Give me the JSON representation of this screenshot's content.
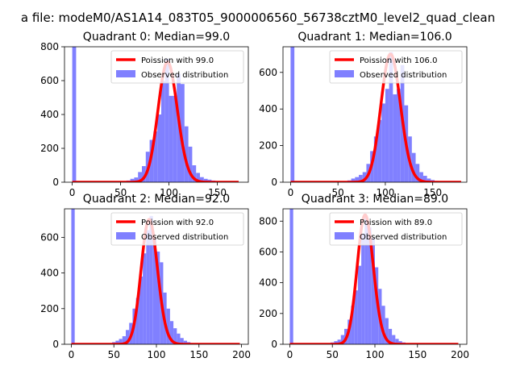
{
  "figure": {
    "suptitle": "a file: modeM0/AS1A14_083T05_9000006560_56738cztM0_level2_quad_clean"
  },
  "colors": {
    "histogram": "#8080ff",
    "poisson": "#ff0000",
    "axis": "#000000",
    "background": "#ffffff"
  },
  "chart_data": [
    {
      "type": "bar",
      "title": "Quadrant 0: Median=99.0",
      "median": 99.0,
      "xlim": [
        -8,
        182
      ],
      "ylim": [
        0,
        800
      ],
      "xticks": [
        0,
        50,
        100,
        150
      ],
      "yticks": [
        0,
        200,
        400,
        600,
        800
      ],
      "legend": {
        "position": "top-right",
        "entries": [
          "Poission with 99.0",
          "Observed distribution"
        ]
      },
      "bin_width": 4,
      "histogram": {
        "bins": [
          0,
          44,
          48,
          52,
          56,
          60,
          64,
          68,
          72,
          76,
          80,
          84,
          88,
          92,
          96,
          100,
          104,
          108,
          112,
          116,
          120,
          124,
          128,
          132,
          136,
          140,
          144,
          148,
          152,
          156,
          160
        ],
        "counts": [
          800,
          2,
          3,
          6,
          10,
          20,
          28,
          60,
          95,
          180,
          250,
          300,
          400,
          600,
          730,
          510,
          510,
          640,
          580,
          330,
          210,
          100,
          55,
          30,
          20,
          15,
          10,
          7,
          4,
          2,
          1
        ]
      },
      "poisson": {
        "lambda": 99.0,
        "scale": 710,
        "x_range": [
          0,
          172
        ]
      }
    },
    {
      "type": "bar",
      "title": "Quadrant 1: Median=106.0",
      "median": 106.0,
      "xlim": [
        -8,
        186
      ],
      "ylim": [
        0,
        740
      ],
      "xticks": [
        0,
        50,
        100,
        150
      ],
      "yticks": [
        0,
        200,
        400,
        600
      ],
      "legend": {
        "position": "top-right",
        "entries": [
          "Poission with 106.0",
          "Observed distribution"
        ]
      },
      "bin_width": 4,
      "histogram": {
        "bins": [
          0,
          52,
          56,
          60,
          64,
          68,
          72,
          76,
          80,
          84,
          88,
          92,
          96,
          100,
          104,
          108,
          112,
          116,
          120,
          124,
          128,
          132,
          136,
          140,
          144,
          148,
          152,
          156,
          160
        ],
        "counts": [
          740,
          3,
          5,
          10,
          20,
          28,
          40,
          55,
          100,
          170,
          250,
          340,
          430,
          510,
          710,
          480,
          510,
          640,
          420,
          250,
          160,
          100,
          55,
          35,
          20,
          12,
          7,
          4,
          2
        ]
      },
      "poisson": {
        "lambda": 106.0,
        "scale": 700,
        "x_range": [
          0,
          180
        ]
      }
    },
    {
      "type": "bar",
      "title": "Quadrant 2: Median=92.0",
      "median": 92.0,
      "xlim": [
        -8,
        208
      ],
      "ylim": [
        0,
        760
      ],
      "xticks": [
        0,
        50,
        100,
        150,
        200
      ],
      "yticks": [
        0,
        200,
        400,
        600
      ],
      "legend": {
        "position": "top-right",
        "entries": [
          "Poission with 92.0",
          "Observed distribution"
        ]
      },
      "bin_width": 4,
      "histogram": {
        "bins": [
          0,
          40,
          44,
          48,
          52,
          56,
          60,
          64,
          68,
          72,
          76,
          80,
          84,
          88,
          92,
          96,
          100,
          104,
          108,
          112,
          116,
          120,
          124,
          128,
          132,
          136,
          140,
          144,
          148
        ],
        "counts": [
          760,
          3,
          6,
          12,
          20,
          30,
          45,
          80,
          120,
          200,
          260,
          380,
          510,
          640,
          720,
          600,
          520,
          460,
          290,
          200,
          130,
          90,
          60,
          35,
          20,
          12,
          7,
          4,
          2
        ]
      },
      "poisson": {
        "lambda": 92.0,
        "scale": 700,
        "x_range": [
          0,
          198
        ]
      }
    },
    {
      "type": "bar",
      "title": "Quadrant 3: Median=89.0",
      "median": 89.0,
      "xlim": [
        -8,
        208
      ],
      "ylim": [
        0,
        880
      ],
      "xticks": [
        0,
        50,
        100,
        150,
        200
      ],
      "yticks": [
        0,
        200,
        400,
        600,
        800
      ],
      "legend": {
        "position": "top-right",
        "entries": [
          "Poission with 89.0",
          "Observed distribution"
        ]
      },
      "bin_width": 4,
      "histogram": {
        "bins": [
          0,
          40,
          44,
          48,
          52,
          56,
          60,
          64,
          68,
          72,
          76,
          80,
          84,
          88,
          92,
          96,
          100,
          104,
          108,
          112,
          116,
          120,
          124,
          128,
          132,
          136,
          140,
          144
        ],
        "counts": [
          880,
          3,
          6,
          12,
          20,
          30,
          60,
          100,
          160,
          250,
          350,
          510,
          720,
          830,
          760,
          690,
          500,
          360,
          250,
          170,
          100,
          60,
          35,
          20,
          12,
          6,
          3,
          2
        ]
      },
      "poisson": {
        "lambda": 89.0,
        "scale": 840,
        "x_range": [
          0,
          198
        ]
      }
    }
  ]
}
